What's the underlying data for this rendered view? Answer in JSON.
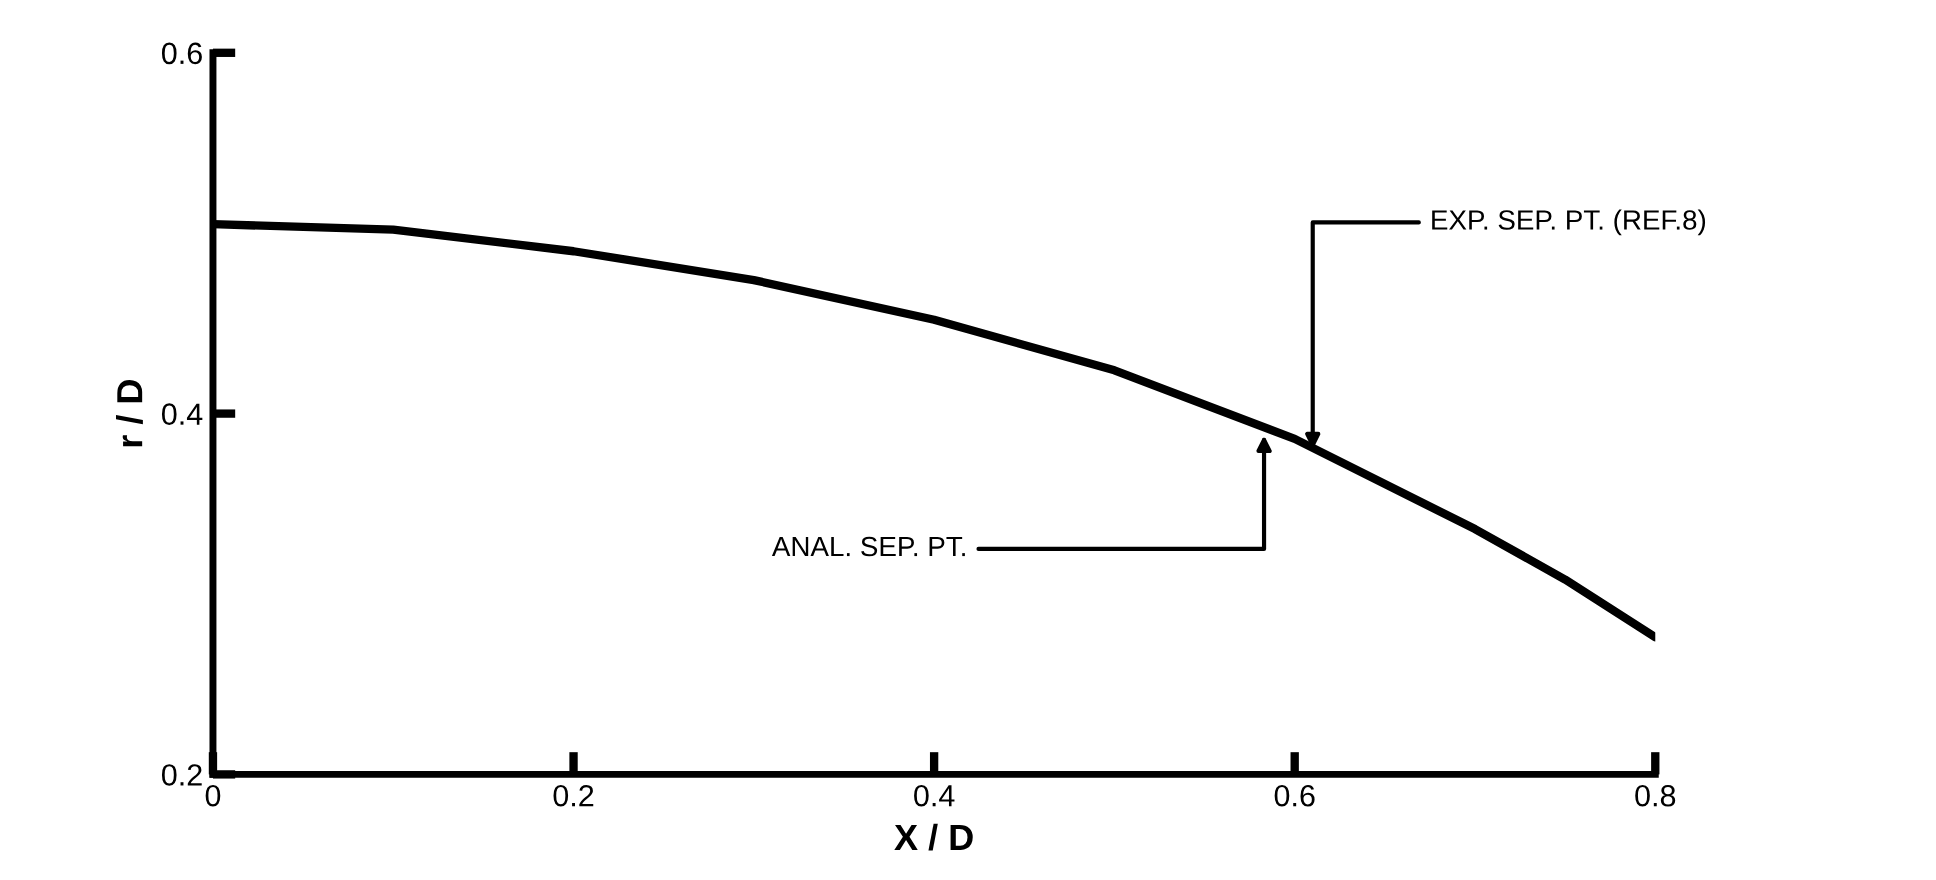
{
  "chart_data": {
    "type": "line",
    "xlabel": "X / D",
    "ylabel": "r / D",
    "series": [
      {
        "color": "#000000",
        "x": [
          0,
          0.1,
          0.2,
          0.3,
          0.4,
          0.5,
          0.6,
          0.7,
          0.75,
          0.8
        ],
        "values": [
          0.505,
          0.502,
          0.49,
          0.474,
          0.452,
          0.424,
          0.386,
          0.336,
          0.308,
          0.276
        ]
      }
    ],
    "xlim": [
      0,
      0.8
    ],
    "ylim": [
      0.2,
      0.6
    ],
    "xticks": [
      0,
      0.2,
      0.4,
      0.6,
      0.8
    ],
    "yticks": [
      0.2,
      0.4,
      0.6
    ],
    "annotations": [
      {
        "text": "ANAL. SEP. PT.",
        "x": 0.583,
        "y": 0.388
      },
      {
        "text": "EXP. SEP. PT. (REF.8)",
        "x": 0.61,
        "y": 0.38
      }
    ],
    "grid": false,
    "marker": "none",
    "line_style": "solid"
  }
}
